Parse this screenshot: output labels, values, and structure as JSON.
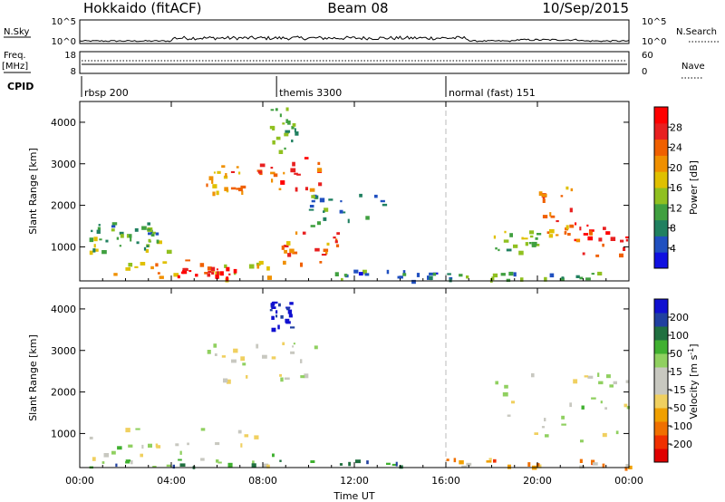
{
  "header": {
    "radar": "Hokkaido (fitACF)",
    "beam": "Beam 08",
    "date": "10/Sep/2015"
  },
  "top_panels": {
    "nsky_label": "N.Sky",
    "nsky_ticks": [
      "10^5",
      "10^0"
    ],
    "nsearch_label": "N.Search",
    "nsearch_ticks": [
      "10^5",
      "10^0"
    ],
    "freq_label_1": "Freq.",
    "freq_label_2": "[MHz]",
    "freq_ticks": [
      "18",
      "8"
    ],
    "nave_label": "Nave",
    "nave_ticks": [
      "60",
      "0"
    ],
    "cpid_label": "CPID",
    "cpid_segments": [
      {
        "start": 0.0,
        "label": "rbsp 200"
      },
      {
        "start": 8.6,
        "label": "themis 3300"
      },
      {
        "start": 16.0,
        "label": "normal (fast) 151"
      }
    ]
  },
  "chart_data": [
    {
      "type": "heatmap",
      "name": "Power",
      "xlabel": "",
      "ylabel": "Slant Range [km]",
      "xlim": [
        0,
        24
      ],
      "ylim": [
        180,
        4500
      ],
      "yticks": [
        "1000",
        "2000",
        "3000",
        "4000"
      ],
      "colorbar": {
        "label": "Power [dB]",
        "range": [
          0,
          32
        ],
        "ticks": [
          "4",
          "8",
          "12",
          "16",
          "20",
          "24",
          "28"
        ],
        "colors": [
          "#1010e0",
          "#2050c0",
          "#208060",
          "#40a040",
          "#90c020",
          "#e0c000",
          "#f09000",
          "#f06000",
          "#e82020",
          "#ff0000"
        ]
      },
      "echo_regions": [
        {
          "t0": 0.2,
          "t1": 4.2,
          "r0": 900,
          "r1": 1250,
          "level": 0.4
        },
        {
          "t0": 0.4,
          "t1": 3.5,
          "r0": 1300,
          "r1": 1600,
          "level": 0.3
        },
        {
          "t0": 1.0,
          "t1": 8.5,
          "r0": 250,
          "r1": 700,
          "level": 0.6
        },
        {
          "t0": 4.2,
          "t1": 6.8,
          "r0": 250,
          "r1": 550,
          "level": 0.95
        },
        {
          "t0": 5.5,
          "t1": 7.2,
          "r0": 2300,
          "r1": 3000,
          "level": 0.7
        },
        {
          "t0": 7.5,
          "t1": 10.5,
          "r0": 2400,
          "r1": 3200,
          "level": 0.8
        },
        {
          "t0": 8.3,
          "t1": 9.5,
          "r0": 3300,
          "r1": 4400,
          "level": 0.35
        },
        {
          "t0": 8.7,
          "t1": 11.3,
          "r0": 600,
          "r1": 1400,
          "level": 0.75
        },
        {
          "t0": 10.0,
          "t1": 13.5,
          "r0": 1500,
          "r1": 2300,
          "level": 0.3
        },
        {
          "t0": 11.0,
          "t1": 16.0,
          "r0": 200,
          "r1": 450,
          "level": 0.25
        },
        {
          "t0": 16.0,
          "t1": 24.0,
          "r0": 200,
          "r1": 420,
          "level": 0.3
        },
        {
          "t0": 18.0,
          "t1": 20.0,
          "r0": 900,
          "r1": 1400,
          "level": 0.45
        },
        {
          "t0": 20.0,
          "t1": 21.5,
          "r0": 1300,
          "r1": 2500,
          "level": 0.7
        },
        {
          "t0": 21.5,
          "t1": 24.0,
          "r0": 800,
          "r1": 1600,
          "level": 0.85
        }
      ],
      "time_marker": 16.0
    },
    {
      "type": "heatmap",
      "name": "Velocity",
      "xlabel": "Time UT",
      "ylabel": "Slant Range [km]",
      "xlim": [
        0,
        24
      ],
      "ylim": [
        180,
        4500
      ],
      "xticks": [
        "00:00",
        "04:00",
        "08:00",
        "12:00",
        "16:00",
        "20:00",
        "00:00"
      ],
      "yticks": [
        "1000",
        "2000",
        "3000",
        "4000"
      ],
      "colorbar": {
        "label": "Velocity [m s^-1]",
        "label_text": "Velocity",
        "label_unit": "[m s",
        "label_exp": "-1",
        "label_close": "]",
        "range": [
          -250,
          250
        ],
        "ticks": [
          "-200",
          "-100",
          "-50",
          "-15",
          "15",
          "50",
          "100",
          "200"
        ],
        "colors": [
          "#e00000",
          "#f03000",
          "#f07000",
          "#f0a000",
          "#f0d060",
          "#c8c8c0",
          "#c8c8c0",
          "#90d060",
          "#40b030",
          "#207040",
          "#2040a0",
          "#1010d0"
        ]
      },
      "echo_regions": [
        {
          "t0": 0.2,
          "t1": 8.5,
          "r0": 250,
          "r1": 1250,
          "level": 0.5
        },
        {
          "t0": 0.2,
          "t1": 16.0,
          "r0": 200,
          "r1": 400,
          "level": 0.75
        },
        {
          "t0": 5.5,
          "t1": 10.5,
          "r0": 2300,
          "r1": 3200,
          "level": 0.5
        },
        {
          "t0": 8.3,
          "t1": 9.2,
          "r0": 3500,
          "r1": 4200,
          "level": 0.97
        },
        {
          "t0": 16.0,
          "t1": 24.0,
          "r0": 200,
          "r1": 420,
          "level": 0.3
        },
        {
          "t0": 18.0,
          "t1": 24.0,
          "r0": 800,
          "r1": 2500,
          "level": 0.5
        }
      ],
      "time_marker": 16.0
    }
  ]
}
